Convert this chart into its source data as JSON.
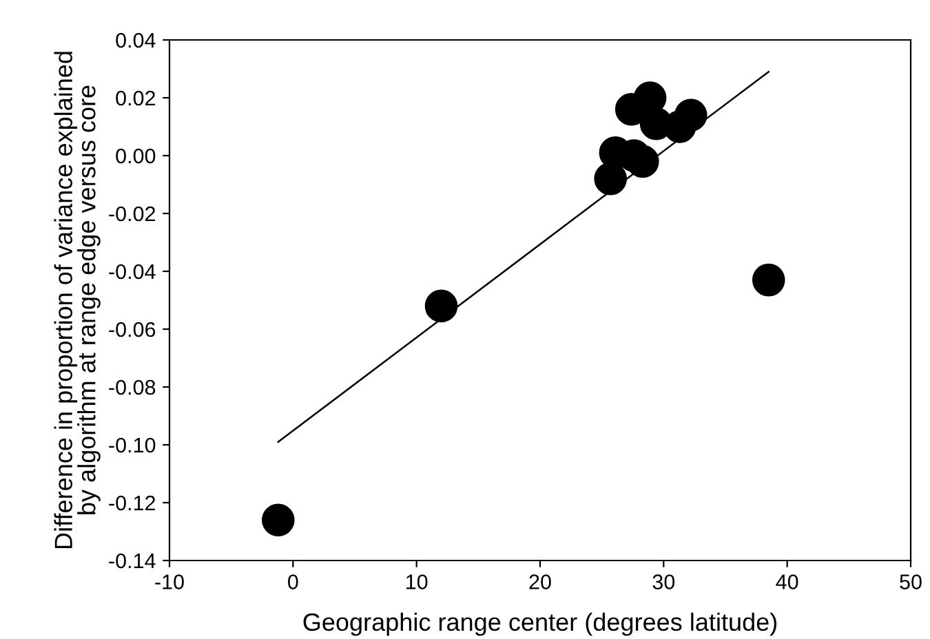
{
  "chart_data": {
    "type": "scatter",
    "xlabel": "Geographic range center (degrees latitude)",
    "ylabel": "Difference in proportion of variance explained\nby algorithm at range edge versus core",
    "series": [
      {
        "color": "#000000",
        "marker": "circle",
        "x": [
          -1.2,
          12.0,
          38.5,
          25.7,
          26.1,
          27.6,
          28.3,
          27.4,
          28.9,
          29.4,
          31.3,
          32.2
        ],
        "values": [
          -0.126,
          -0.052,
          -0.043,
          -0.008,
          0.001,
          0.0,
          -0.002,
          0.016,
          0.02,
          0.011,
          0.01,
          0.014
        ]
      },
      {
        "type": "line",
        "color": "#000000",
        "marker": "none",
        "x": [
          -1.2,
          38.5
        ],
        "values": [
          -0.099,
          0.029
        ]
      }
    ],
    "xlim": [
      -10,
      50
    ],
    "xticks": [
      -10,
      0,
      10,
      20,
      30,
      40,
      50
    ],
    "ylim": [
      -0.14,
      0.04
    ],
    "yticks": [
      {
        "value": -0.14,
        "label": "-0.14"
      },
      {
        "value": -0.12,
        "label": "-0.12"
      },
      {
        "value": -0.1,
        "label": "-0.10"
      },
      {
        "value": -0.08,
        "label": "-0.08"
      },
      {
        "value": -0.06,
        "label": "-0.06"
      },
      {
        "value": -0.04,
        "label": "-0.04"
      },
      {
        "value": -0.02,
        "label": "-0.02"
      },
      {
        "value": 0,
        "label": "0.00"
      },
      {
        "value": 0.02,
        "label": "0.02"
      },
      {
        "value": 0.04,
        "label": "0.04"
      }
    ],
    "grid": false,
    "legend": false
  }
}
